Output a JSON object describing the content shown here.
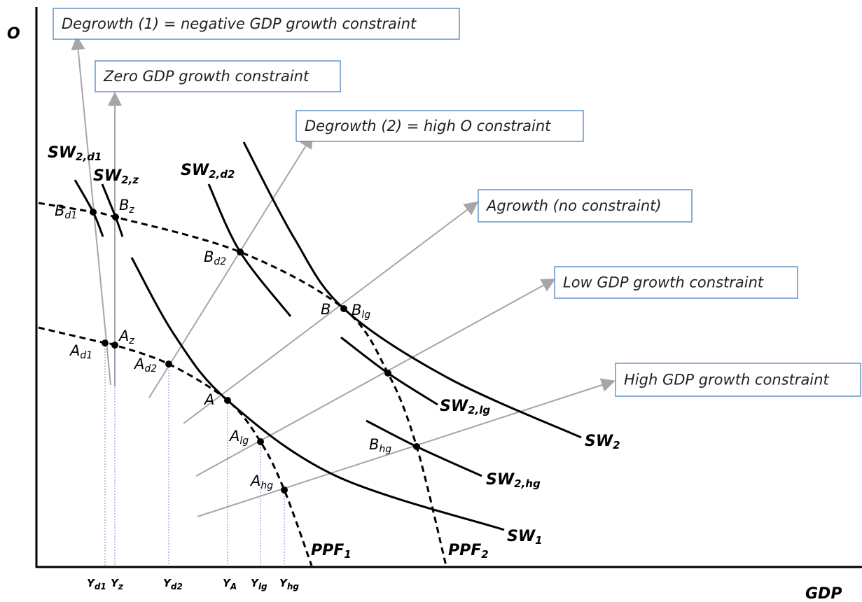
{
  "axes": {
    "y_label": "O",
    "x_label": "GDP"
  },
  "constraints": [
    "Degrowth (1) = negative GDP growth constraint",
    "Zero GDP growth constraint",
    "Degrowth (2) = high O constraint",
    "Agrowth (no constraint)",
    "Low GDP growth constraint",
    "High GDP growth constraint"
  ],
  "curves": [
    {
      "main": "SW",
      "sub": "2,d1"
    },
    {
      "main": "SW",
      "sub": "2,z"
    },
    {
      "main": "SW",
      "sub": "2,d2"
    },
    {
      "main": "SW",
      "sub": "2"
    },
    {
      "main": "SW",
      "sub": "1"
    },
    {
      "main": "SW",
      "sub": "2,lg"
    },
    {
      "main": "SW",
      "sub": "2,hg"
    },
    {
      "main": "PPF",
      "sub": "1"
    },
    {
      "main": "PPF",
      "sub": "2"
    }
  ],
  "points": [
    {
      "main": "B",
      "sub": "d1"
    },
    {
      "main": "B",
      "sub": "z"
    },
    {
      "main": "B",
      "sub": "d2"
    },
    {
      "main": "B",
      "sub": ""
    },
    {
      "main": "B",
      "sub": "lg"
    },
    {
      "main": "B",
      "sub": "hg"
    },
    {
      "main": "A",
      "sub": "d1"
    },
    {
      "main": "A",
      "sub": "z"
    },
    {
      "main": "A",
      "sub": "d2"
    },
    {
      "main": "A",
      "sub": ""
    },
    {
      "main": "A",
      "sub": "lg"
    },
    {
      "main": "A",
      "sub": "hg"
    }
  ],
  "x_ticks": [
    {
      "main": "Y",
      "sub": "d1"
    },
    {
      "main": "Y",
      "sub": "z"
    },
    {
      "main": "Y",
      "sub": "d2"
    },
    {
      "main": "Y",
      "sub": "A"
    },
    {
      "main": "Y",
      "sub": "lg"
    },
    {
      "main": "Y",
      "sub": "hg"
    }
  ]
}
